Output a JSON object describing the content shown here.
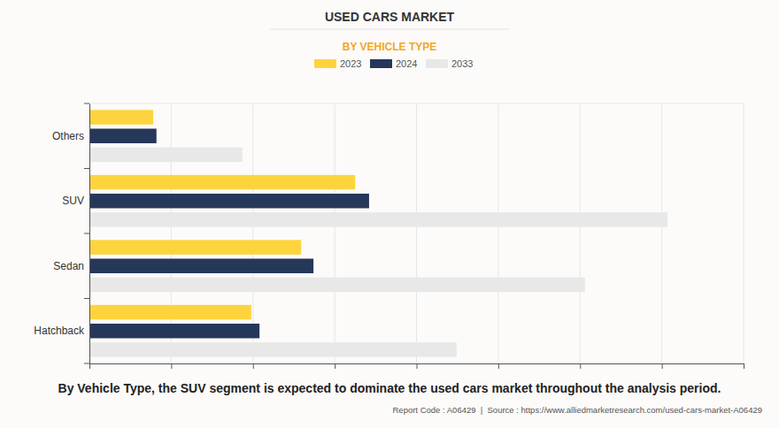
{
  "chart_data": {
    "type": "bar",
    "orientation": "horizontal",
    "title": "USED CARS MARKET",
    "subtitle": "BY VEHICLE TYPE",
    "annotations": [
      "By Vehicle Type, the SUV segment is expected to dominate the used cars market throughout the analysis period.",
      "Report Code : A06429  |  Source : https://www.alliedmarketresearch.com/used-cars-market-A06429"
    ],
    "categories": [
      "Others",
      "SUV",
      "Sedan",
      "Hatchback"
    ],
    "series": [
      {
        "name": "2023",
        "color": "#fdd43d",
        "values": [
          0.78,
          3.25,
          2.59,
          1.98
        ]
      },
      {
        "name": "2024",
        "color": "#263859",
        "values": [
          0.82,
          3.42,
          2.74,
          2.08
        ]
      },
      {
        "name": "2033",
        "color": "#e8e8e8",
        "values": [
          1.87,
          7.07,
          6.06,
          4.49
        ]
      }
    ],
    "xlim": [
      0,
      8
    ],
    "xticks": [
      0,
      1,
      2,
      3,
      4,
      5,
      6,
      7,
      8
    ],
    "grid": true,
    "legend": "top",
    "tick_labels": "y"
  }
}
